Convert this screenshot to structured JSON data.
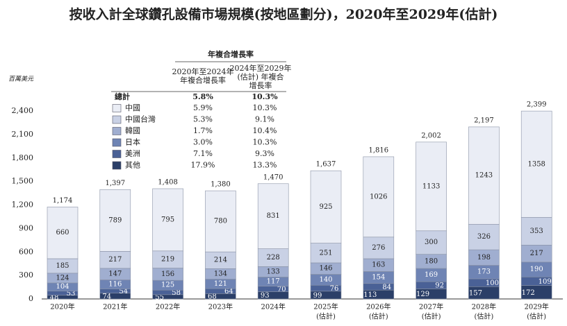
{
  "chart_data": {
    "type": "stacked_bar",
    "title": "按收入計全球鑽孔設備市場規模(按地區劃分)，2020年至2029年(估計)",
    "y_unit_label": "百萬美元",
    "categories": [
      "2020年",
      "2021年",
      "2022年",
      "2023年",
      "2024年",
      "2025年",
      "2026年",
      "2027年",
      "2028年",
      "2029年"
    ],
    "category_notes": [
      null,
      null,
      null,
      null,
      null,
      "(估計)",
      "(估計)",
      "(估計)",
      "(估計)",
      "(估計)"
    ],
    "ylim": [
      0,
      2400
    ],
    "yticks": [
      0,
      300,
      600,
      900,
      {
        "value": 1200,
        "label": "1,200"
      },
      {
        "value": 1500,
        "label": "1,500"
      },
      {
        "value": 1800,
        "label": "1,800"
      },
      {
        "value": 2100,
        "label": "2,100"
      },
      {
        "value": 2400,
        "label": "2,400"
      }
    ],
    "series": [
      {
        "name": "其他",
        "color": "#2b3f68",
        "values": [
          48,
          74,
          55,
          68,
          93,
          99,
          113,
          129,
          157,
          172
        ],
        "cagr": [
          "17.9%",
          "13.3%"
        ]
      },
      {
        "name": "美洲",
        "color": "#4a6196",
        "values": [
          53,
          54,
          58,
          64,
          70,
          76,
          84,
          92,
          100,
          109
        ],
        "cagr": [
          "7.1%",
          "9.3%"
        ]
      },
      {
        "name": "日本",
        "color": "#6f84b4",
        "values": [
          104,
          116,
          125,
          121,
          117,
          140,
          154,
          169,
          173,
          190
        ],
        "cagr": [
          "3.0%",
          "10.3%"
        ]
      },
      {
        "name": "韓國",
        "color": "#a0aed0",
        "values": [
          124,
          147,
          156,
          134,
          133,
          146,
          163,
          180,
          198,
          217
        ],
        "cagr": [
          "1.7%",
          "10.4%"
        ]
      },
      {
        "name": "中國台灣",
        "color": "#c9d1e5",
        "values": [
          185,
          217,
          219,
          214,
          228,
          251,
          276,
          300,
          326,
          353
        ],
        "cagr": [
          "5.3%",
          "9.1%"
        ]
      },
      {
        "name": "中國",
        "color": "#eaedf5",
        "values": [
          660,
          789,
          795,
          780,
          831,
          925,
          1026,
          1133,
          1243,
          1358
        ],
        "cagr": [
          "5.9%",
          "10.3%"
        ]
      }
    ],
    "totals": [
      1174,
      1397,
      1408,
      1380,
      1470,
      1637,
      1816,
      2002,
      2197,
      2399
    ],
    "totals_value_labels": [
      "1,174",
      "1,397",
      "1,408",
      "1,380",
      "1,470",
      "1,637",
      "1,816",
      "2,002",
      "2,197",
      "2,399"
    ],
    "cagr_table": {
      "title": "年複合增長率",
      "columns": [
        [
          "2020年至2024年",
          "年複合增長率"
        ],
        [
          "2024年至2029年",
          "(估計) 年複合",
          "增長率"
        ]
      ],
      "total_label": "總計",
      "total_values": [
        "5.8%",
        "10.3%"
      ]
    }
  }
}
